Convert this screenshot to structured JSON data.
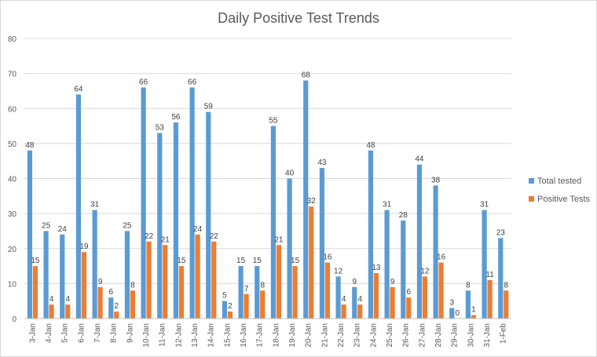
{
  "chart_data": {
    "type": "bar",
    "title": "Daily Positive Test Trends",
    "xlabel": "",
    "ylabel": "",
    "ylim": [
      0,
      80
    ],
    "yticks": [
      0,
      10,
      20,
      30,
      40,
      50,
      60,
      70,
      80
    ],
    "grid": true,
    "legend_position": "right",
    "categories": [
      "3-Jan",
      "4-Jan",
      "5-Jan",
      "6-Jan",
      "7-Jan",
      "8-Jan",
      "9-Jan",
      "10-Jan",
      "11-Jan",
      "12-Jan",
      "13-Jan",
      "14-Jan",
      "15-Jan",
      "16-Jan",
      "17-Jan",
      "18-Jan",
      "19-Jan",
      "20-Jan",
      "21-Jan",
      "22-Jan",
      "23-Jan",
      "24-Jan",
      "25-Jan",
      "26-Jan",
      "27-Jan",
      "28-Jan",
      "29-Jan",
      "30-Jan",
      "31-Jan",
      "1-Feb"
    ],
    "series": [
      {
        "name": "Total tested",
        "color": "#5B9BD5",
        "values": [
          48,
          25,
          24,
          64,
          31,
          6,
          25,
          66,
          53,
          56,
          66,
          59,
          5,
          15,
          15,
          55,
          40,
          68,
          43,
          12,
          9,
          48,
          31,
          28,
          44,
          38,
          3,
          8,
          31,
          23
        ]
      },
      {
        "name": "Positive Tests",
        "color": "#ED7D31",
        "values": [
          15,
          4,
          4,
          19,
          9,
          2,
          8,
          22,
          21,
          15,
          24,
          22,
          2,
          7,
          8,
          21,
          15,
          32,
          16,
          4,
          4,
          13,
          9,
          6,
          12,
          16,
          0,
          1,
          11,
          8
        ]
      }
    ]
  }
}
